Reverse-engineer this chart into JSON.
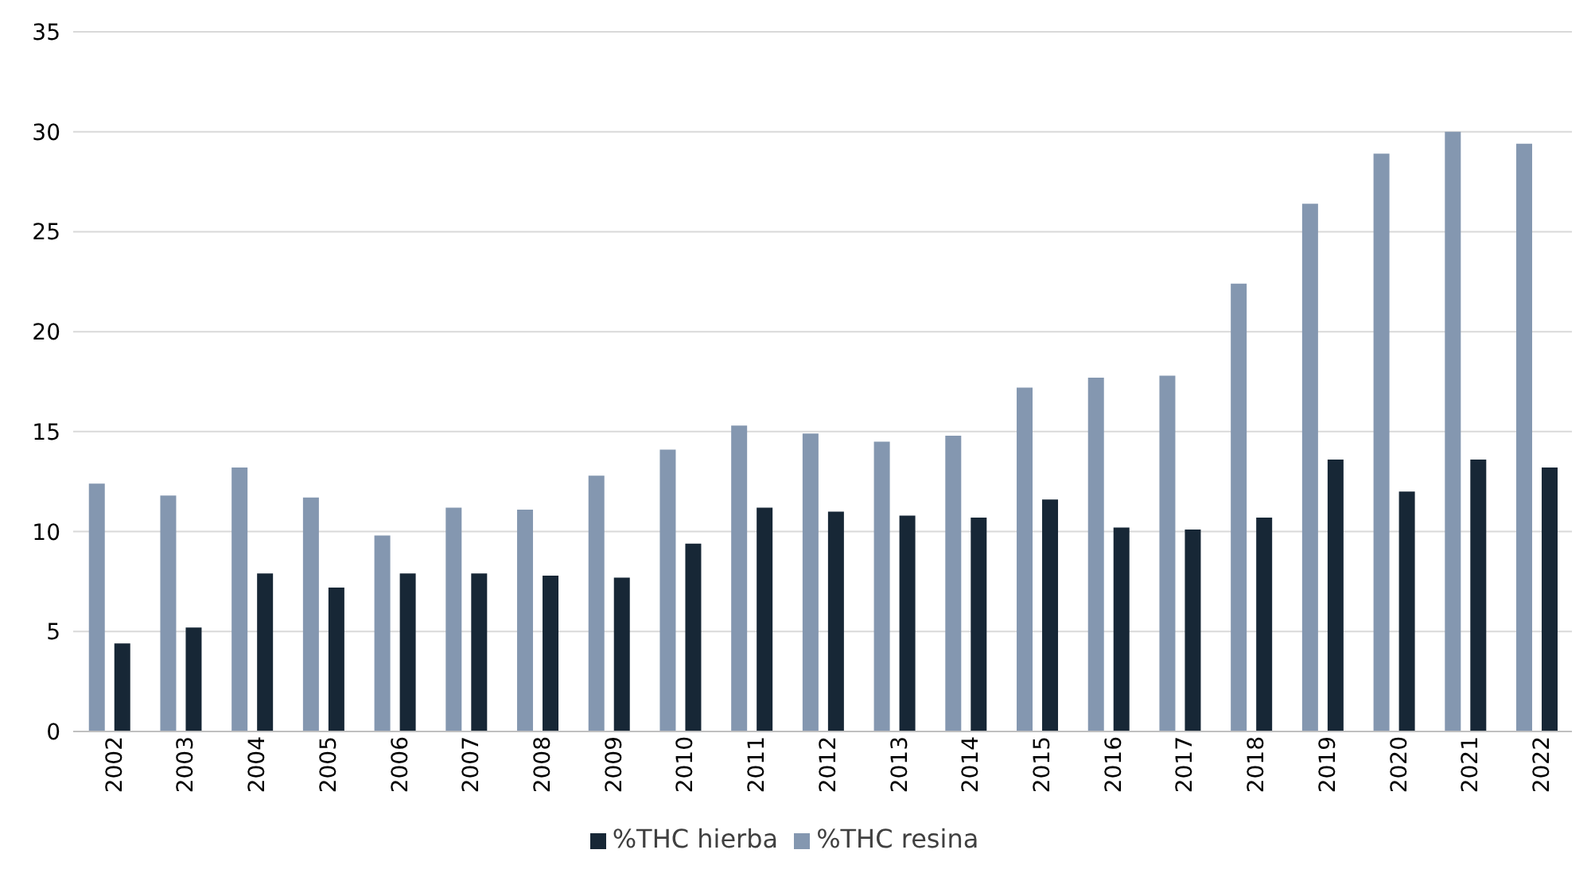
{
  "chart_data": {
    "type": "bar",
    "categories": [
      "2002",
      "2003",
      "2004",
      "2005",
      "2006",
      "2007",
      "2008",
      "2009",
      "2010",
      "2011",
      "2012",
      "2013",
      "2014",
      "2015",
      "2016",
      "2017",
      "2018",
      "2019",
      "2020",
      "2021",
      "2022"
    ],
    "series": [
      {
        "name": "%THC resina",
        "color": "#8497b0",
        "values": [
          12.4,
          11.8,
          13.2,
          11.7,
          9.8,
          11.2,
          11.1,
          12.8,
          14.1,
          15.3,
          14.9,
          14.5,
          14.8,
          17.2,
          17.7,
          17.8,
          22.4,
          26.4,
          28.9,
          30.0,
          29.4
        ]
      },
      {
        "name": "%THC hierba",
        "color": "#172736",
        "values": [
          4.4,
          5.2,
          7.9,
          7.2,
          7.9,
          7.9,
          7.8,
          7.7,
          9.4,
          11.2,
          11.0,
          10.8,
          10.7,
          11.6,
          10.2,
          10.1,
          10.7,
          13.6,
          12.0,
          13.6,
          13.2
        ]
      }
    ],
    "ylim": [
      0,
      35
    ],
    "yticks": [
      0,
      5,
      10,
      15,
      20,
      25,
      30,
      35
    ],
    "grid": "y",
    "legend": "bottom"
  }
}
